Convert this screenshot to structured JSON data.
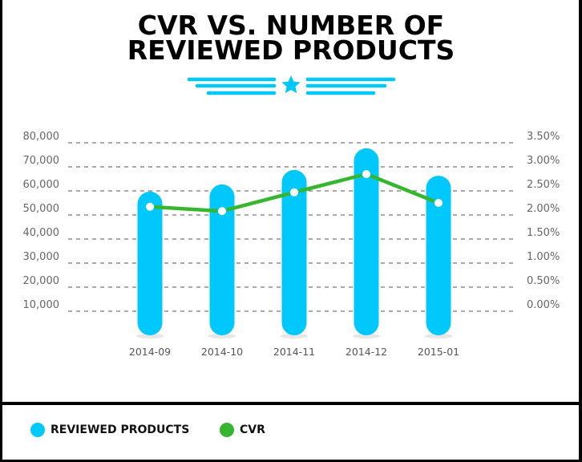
{
  "chart_data": {
    "type": "bar+line",
    "title_lines": [
      "CVR VS. NUMBER OF",
      "REVIEWED PRODUCTS"
    ],
    "categories": [
      "2014-09",
      "2014-10",
      "2014-11",
      "2014-12",
      "2015-01"
    ],
    "series": [
      {
        "name": "REVIEWED PRODUCTS",
        "type": "bar",
        "axis": "left",
        "color": "#00c8fa",
        "values": [
          59700,
          62700,
          68700,
          77700,
          66300
        ]
      },
      {
        "name": "CVR",
        "type": "line",
        "axis": "right",
        "color": "#36b52e",
        "values": [
          2.17,
          2.08,
          2.47,
          2.85,
          2.25
        ]
      }
    ],
    "left_axis": {
      "ticks": [
        "10,000",
        "20,000",
        "30,000",
        "40,000",
        "50,000",
        "60,000",
        "70,000",
        "80,000"
      ],
      "tick_values": [
        10000,
        20000,
        30000,
        40000,
        50000,
        60000,
        70000,
        80000
      ],
      "ylim": [
        0,
        80000
      ]
    },
    "right_axis": {
      "ticks": [
        "0.00%",
        "0.50%",
        "1.00%",
        "1.50%",
        "2.00%",
        "2.50%",
        "3.00%",
        "3.50%"
      ],
      "tick_values": [
        0,
        0.5,
        1,
        1.5,
        2,
        2.5,
        3,
        3.5
      ],
      "ylim": [
        -0.5,
        3.5
      ],
      "unit": "%"
    },
    "grid": "dashed horizontal",
    "legend": "bottom-left"
  },
  "legend": {
    "items": [
      {
        "label": "REVIEWED PRODUCTS",
        "color": "#00c8fa"
      },
      {
        "label": "CVR",
        "color": "#36b52e"
      }
    ]
  }
}
